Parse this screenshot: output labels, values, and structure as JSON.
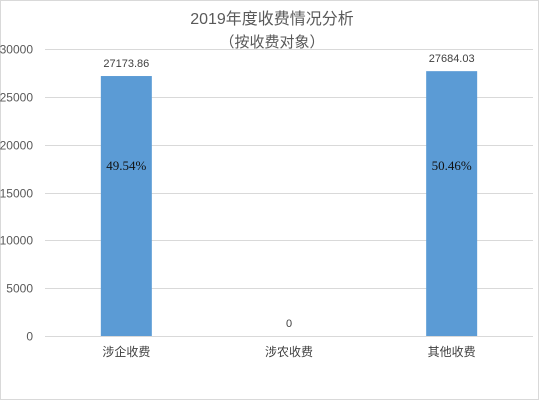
{
  "chart_data": {
    "type": "bar",
    "title": "2019年度收费情况分析",
    "subtitle": "（按收费对象）",
    "xlabel": "",
    "ylabel": "",
    "categories": [
      "涉企收费",
      "涉农收费",
      "其他收费"
    ],
    "values": [
      27173.86,
      0,
      27684.03
    ],
    "data_labels": [
      "27173.86",
      "0",
      "27684.03"
    ],
    "bar_annotations": [
      "49.54%",
      "",
      "50.46%"
    ],
    "ylim": [
      0,
      30000
    ],
    "yticks": [
      0,
      5000,
      10000,
      15000,
      20000,
      25000,
      30000
    ],
    "ytick_labels": [
      "0",
      "5000",
      "10000",
      "15000",
      "20000",
      "25000",
      "30000"
    ],
    "grid": true,
    "legend": "none",
    "bar_color": "#5b9bd5",
    "grid_color": "#d9d9d9"
  }
}
